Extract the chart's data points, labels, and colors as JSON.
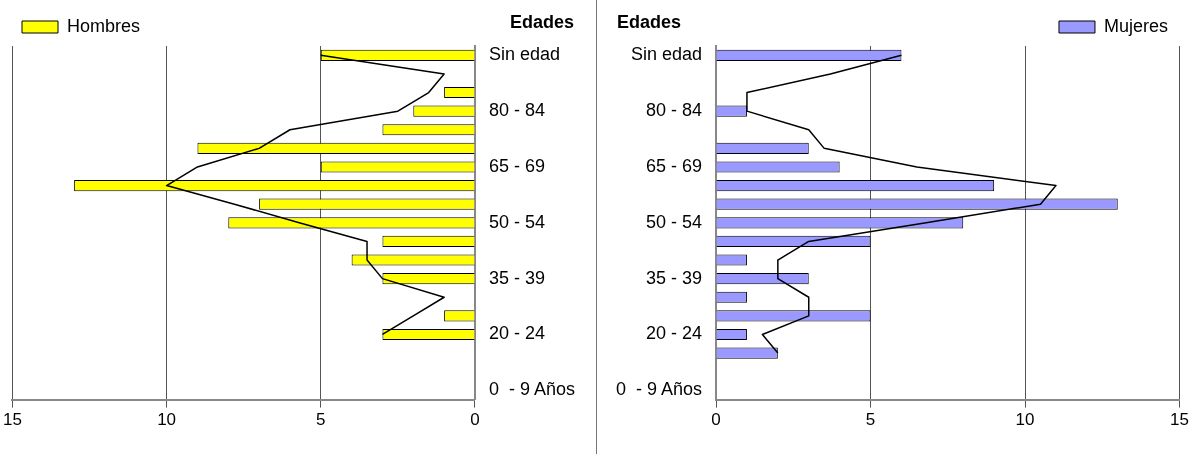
{
  "chart_data": [
    {
      "type": "bar",
      "orientation": "horizontal",
      "ylabel": "Edades",
      "legend": "top left",
      "grid": "x",
      "categories": [
        "Sin edad",
        null,
        null,
        "80 - 84",
        null,
        null,
        "65 - 69",
        null,
        null,
        "50 - 54",
        null,
        null,
        "35 - 39",
        null,
        null,
        "20 - 24",
        null,
        null,
        "0  - 9 Años"
      ],
      "xlim": [
        15,
        0
      ],
      "xticks": [
        15,
        10,
        5,
        0
      ],
      "series": [
        {
          "name": "Hombres",
          "color": "#ffff00",
          "values": [
            5,
            null,
            1,
            2,
            3,
            9,
            5,
            13,
            7,
            8,
            3,
            4,
            3,
            null,
            1,
            3,
            null,
            null,
            null
          ]
        },
        {
          "type": "line",
          "color": "#000000",
          "values": [
            5,
            1,
            1.5,
            2.5,
            6,
            7,
            9,
            10,
            7.8,
            5.7,
            3.5,
            3.5,
            3,
            1,
            2,
            3,
            null,
            null,
            null
          ]
        }
      ]
    },
    {
      "type": "bar",
      "orientation": "horizontal",
      "ylabel": "Edades",
      "legend": "top right",
      "grid": "x",
      "categories": [
        "Sin edad",
        null,
        null,
        "80 - 84",
        null,
        null,
        "65 - 69",
        null,
        null,
        "50 - 54",
        null,
        null,
        "35 - 39",
        null,
        null,
        "20 - 24",
        null,
        null,
        "0  - 9 Años"
      ],
      "xlim": [
        0,
        15
      ],
      "xticks": [
        0,
        5,
        10,
        15
      ],
      "series": [
        {
          "name": "Mujeres",
          "color": "#9999ff",
          "values": [
            6,
            null,
            null,
            1,
            null,
            3,
            4,
            9,
            13,
            8,
            5,
            1,
            3,
            1,
            5,
            1,
            2,
            null,
            null
          ]
        },
        {
          "type": "line",
          "color": "#000000",
          "values": [
            6,
            3.7,
            1,
            1,
            3,
            3.5,
            6.5,
            11,
            10.5,
            6.8,
            3,
            2,
            2,
            3,
            3,
            1.5,
            2,
            null,
            null
          ]
        }
      ]
    }
  ]
}
